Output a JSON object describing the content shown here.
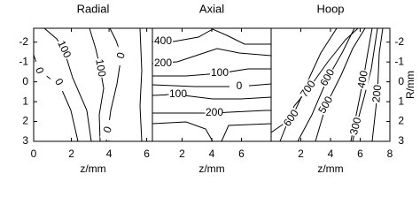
{
  "chart_data": [
    {
      "type": "contour",
      "title": "Radial",
      "xlabel": "z/mm",
      "xlim": [
        0,
        6.3
      ],
      "xticks": [
        0,
        2,
        4,
        6
      ],
      "ylim": [
        -2.7,
        3
      ],
      "yticks": [
        -2,
        -1,
        0,
        1,
        2,
        3
      ],
      "contour_labels": [
        100,
        0,
        100,
        0,
        0,
        0
      ]
    },
    {
      "type": "contour",
      "title": "Axial",
      "xlabel": "z/mm",
      "xlim": [
        0,
        8
      ],
      "xticks": [
        2,
        4,
        6
      ],
      "ylim": [
        -2.7,
        3
      ],
      "contour_labels": [
        400,
        200,
        100,
        0,
        -100,
        -200
      ]
    },
    {
      "type": "contour",
      "title": "Hoop",
      "xlabel": "z/mm",
      "ylabel": "R/mm",
      "xlim": [
        0,
        8
      ],
      "xticks": [
        2,
        4,
        6,
        8
      ],
      "ylim": [
        -2.7,
        3
      ],
      "yticks": [
        -2,
        -1,
        0,
        1,
        2,
        3
      ],
      "contour_labels": [
        700,
        600,
        400,
        200,
        500,
        600,
        300
      ]
    }
  ]
}
